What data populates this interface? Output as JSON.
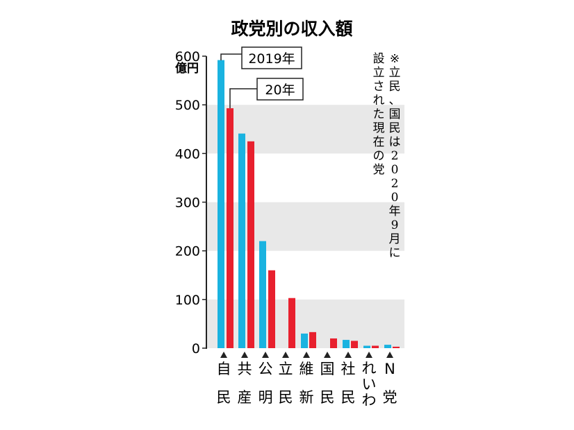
{
  "chart_data": {
    "type": "bar",
    "title": "政党別の収入額",
    "unit_label": "億円",
    "ylim": [
      0,
      600
    ],
    "yticks": [
      "600",
      "500",
      "400",
      "300",
      "200",
      "100",
      "0"
    ],
    "grid_bands": true,
    "categories": [
      [
        "自",
        "民"
      ],
      [
        "共",
        "産"
      ],
      [
        "公",
        "明"
      ],
      [
        "立",
        "民"
      ],
      [
        "維",
        "新"
      ],
      [
        "国",
        "民"
      ],
      [
        "社",
        "民"
      ],
      [
        "れ",
        "い",
        "わ"
      ],
      [
        "N",
        "党"
      ]
    ],
    "series": [
      {
        "name": "2019年",
        "color": "#1ab3e0",
        "values": [
          592,
          441,
          220,
          null,
          30,
          null,
          17,
          5,
          7
        ]
      },
      {
        "name": "20年",
        "color": "#e8202e",
        "values": [
          493,
          425,
          160,
          103,
          33,
          20,
          15,
          5,
          3
        ]
      }
    ],
    "note": [
      "※立民、国民は2020年9月に",
      "設立された現在の党"
    ]
  }
}
